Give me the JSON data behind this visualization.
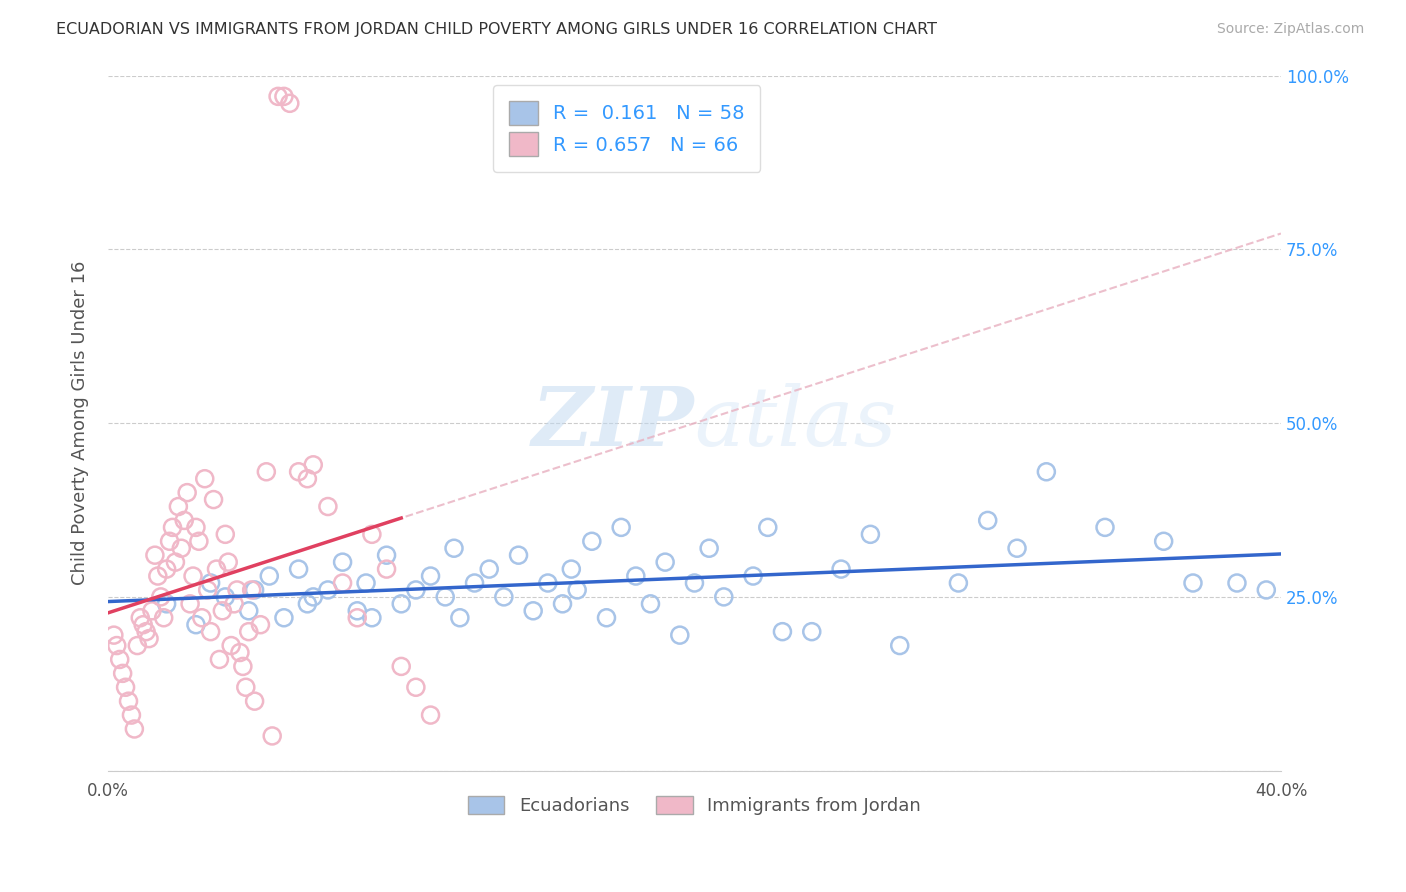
{
  "title": "ECUADORIAN VS IMMIGRANTS FROM JORDAN CHILD POVERTY AMONG GIRLS UNDER 16 CORRELATION CHART",
  "source": "Source: ZipAtlas.com",
  "ylabel": "Child Poverty Among Girls Under 16",
  "xlim": [
    0.0,
    0.4
  ],
  "ylim": [
    0.0,
    1.0
  ],
  "yticks": [
    0.0,
    0.25,
    0.5,
    0.75,
    1.0
  ],
  "xticks": [
    0.0,
    0.1,
    0.2,
    0.3,
    0.4
  ],
  "blue_R": 0.161,
  "blue_N": 58,
  "pink_R": 0.657,
  "pink_N": 66,
  "blue_color": "#a8c4e8",
  "blue_edge_color": "#7aaad0",
  "blue_line_color": "#3366cc",
  "pink_color": "#f0b8c8",
  "pink_edge_color": "#e080a0",
  "pink_line_color": "#e0406080",
  "pink_line_solid_color": "#e04060",
  "diag_color": "#e8b0c0",
  "watermark_color": "#d0e8f8",
  "blue_scatter_x": [
    0.02,
    0.03,
    0.035,
    0.04,
    0.048,
    0.05,
    0.055,
    0.06,
    0.065,
    0.068,
    0.07,
    0.075,
    0.08,
    0.085,
    0.088,
    0.09,
    0.095,
    0.1,
    0.105,
    0.11,
    0.115,
    0.118,
    0.12,
    0.125,
    0.13,
    0.135,
    0.14,
    0.145,
    0.15,
    0.155,
    0.158,
    0.16,
    0.165,
    0.17,
    0.175,
    0.18,
    0.185,
    0.19,
    0.195,
    0.2,
    0.205,
    0.21,
    0.22,
    0.225,
    0.23,
    0.24,
    0.25,
    0.26,
    0.27,
    0.29,
    0.3,
    0.31,
    0.32,
    0.34,
    0.36,
    0.37,
    0.385,
    0.395
  ],
  "blue_scatter_y": [
    0.24,
    0.21,
    0.27,
    0.25,
    0.23,
    0.26,
    0.28,
    0.22,
    0.29,
    0.24,
    0.25,
    0.26,
    0.3,
    0.23,
    0.27,
    0.22,
    0.31,
    0.24,
    0.26,
    0.28,
    0.25,
    0.32,
    0.22,
    0.27,
    0.29,
    0.25,
    0.31,
    0.23,
    0.27,
    0.24,
    0.29,
    0.26,
    0.33,
    0.22,
    0.35,
    0.28,
    0.24,
    0.3,
    0.195,
    0.27,
    0.32,
    0.25,
    0.28,
    0.35,
    0.2,
    0.2,
    0.29,
    0.34,
    0.18,
    0.27,
    0.36,
    0.32,
    0.43,
    0.35,
    0.33,
    0.27,
    0.27,
    0.26
  ],
  "pink_scatter_x": [
    0.002,
    0.003,
    0.004,
    0.005,
    0.006,
    0.007,
    0.008,
    0.009,
    0.01,
    0.011,
    0.012,
    0.013,
    0.014,
    0.015,
    0.016,
    0.017,
    0.018,
    0.019,
    0.02,
    0.021,
    0.022,
    0.023,
    0.024,
    0.025,
    0.026,
    0.027,
    0.028,
    0.029,
    0.03,
    0.031,
    0.032,
    0.033,
    0.034,
    0.035,
    0.036,
    0.037,
    0.038,
    0.039,
    0.04,
    0.041,
    0.042,
    0.043,
    0.044,
    0.045,
    0.046,
    0.047,
    0.048,
    0.049,
    0.05,
    0.052,
    0.054,
    0.056,
    0.058,
    0.06,
    0.062,
    0.065,
    0.068,
    0.07,
    0.075,
    0.08,
    0.085,
    0.09,
    0.095,
    0.1,
    0.105,
    0.11
  ],
  "pink_scatter_y": [
    0.195,
    0.18,
    0.16,
    0.14,
    0.12,
    0.1,
    0.08,
    0.06,
    0.18,
    0.22,
    0.21,
    0.2,
    0.19,
    0.23,
    0.31,
    0.28,
    0.25,
    0.22,
    0.29,
    0.33,
    0.35,
    0.3,
    0.38,
    0.32,
    0.36,
    0.4,
    0.24,
    0.28,
    0.35,
    0.33,
    0.22,
    0.42,
    0.26,
    0.2,
    0.39,
    0.29,
    0.16,
    0.23,
    0.34,
    0.3,
    0.18,
    0.24,
    0.26,
    0.17,
    0.15,
    0.12,
    0.2,
    0.26,
    0.1,
    0.21,
    0.43,
    0.05,
    0.97,
    0.97,
    0.96,
    0.43,
    0.42,
    0.44,
    0.38,
    0.27,
    0.22,
    0.34,
    0.29,
    0.15,
    0.12,
    0.08
  ],
  "legend_labels": [
    "Ecuadorians",
    "Immigrants from Jordan"
  ]
}
